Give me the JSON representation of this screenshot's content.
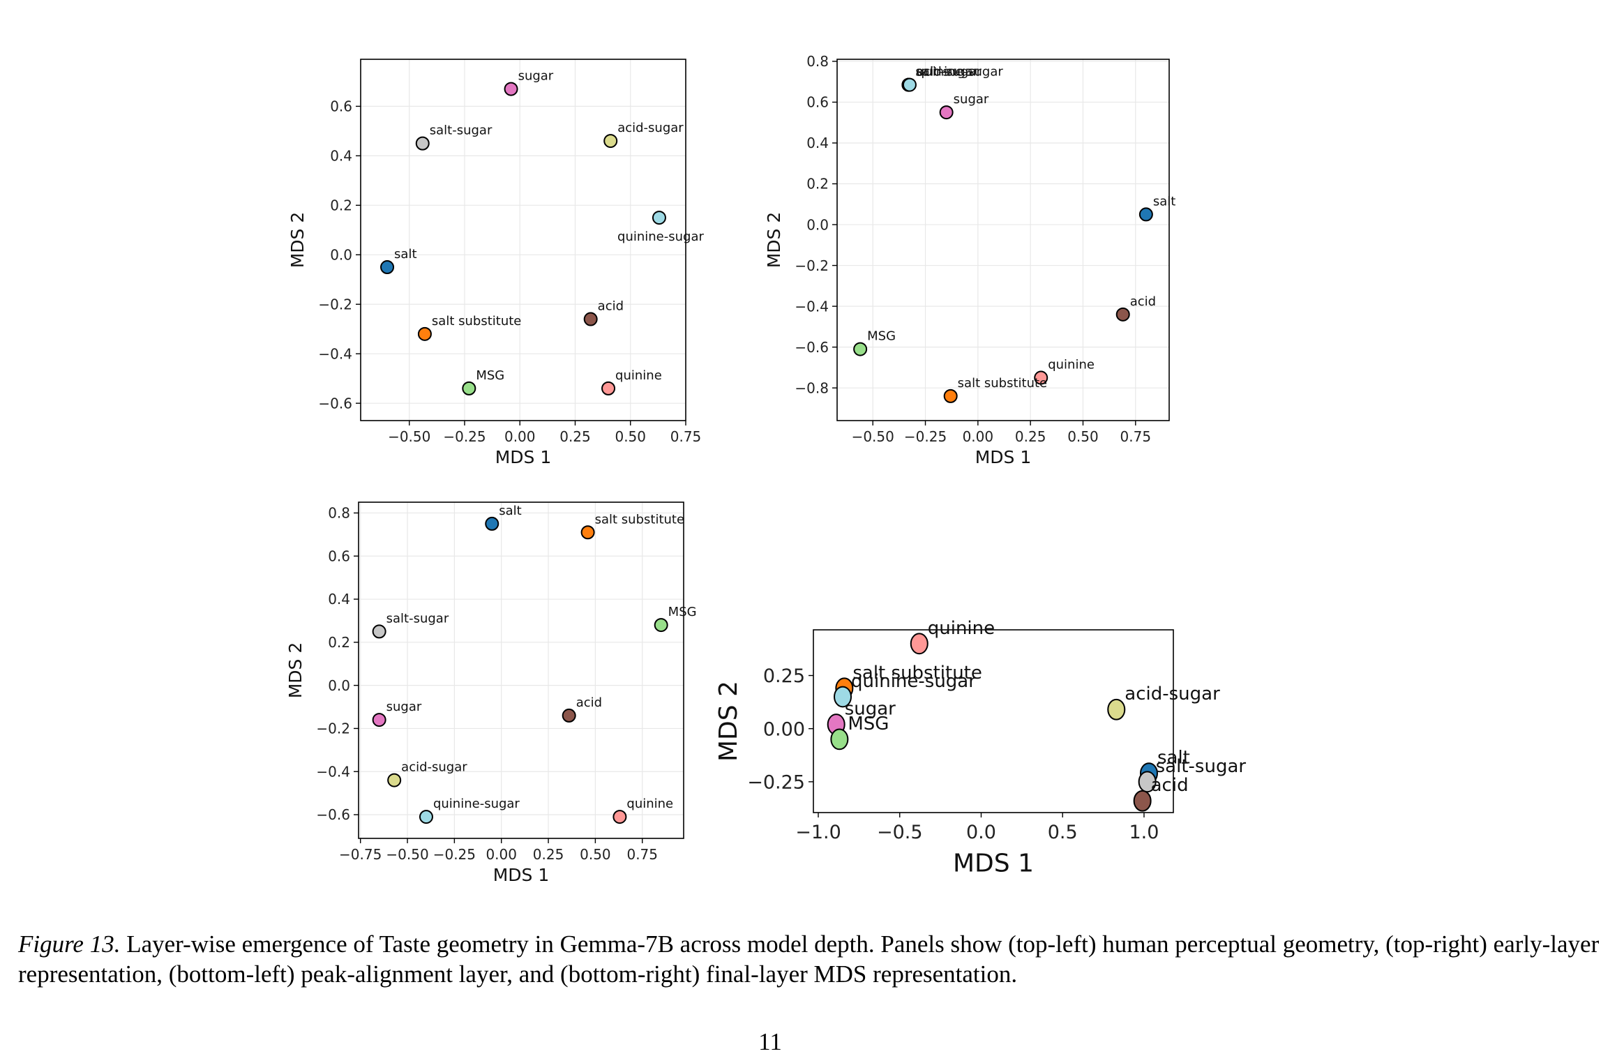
{
  "chart_data": [
    {
      "type": "scatter",
      "panel": "top-left",
      "xlabel": "MDS 1",
      "ylabel": "MDS 2",
      "xlim": [
        -0.72,
        0.75
      ],
      "ylim": [
        -0.67,
        0.79
      ],
      "xticks": [
        -0.5,
        -0.25,
        0.0,
        0.25,
        0.5,
        0.75
      ],
      "yticks": [
        -0.6,
        -0.4,
        -0.2,
        0.0,
        0.2,
        0.4,
        0.6
      ],
      "xtick_labels": [
        "−0.50",
        "−0.25",
        "0.00",
        "0.25",
        "0.50",
        "0.75"
      ],
      "ytick_labels": [
        "−0.6",
        "−0.4",
        "−0.2",
        "0.0",
        "0.2",
        "0.4",
        "0.6"
      ],
      "grid": true,
      "points": [
        {
          "label": "sugar",
          "x": -0.04,
          "y": 0.67,
          "color": "#e377c2",
          "label_pos": "above-right"
        },
        {
          "label": "salt-sugar",
          "x": -0.44,
          "y": 0.45,
          "color": "#c7c7c7",
          "label_pos": "above-right"
        },
        {
          "label": "acid-sugar",
          "x": 0.41,
          "y": 0.46,
          "color": "#dbdb8d",
          "label_pos": "above-right"
        },
        {
          "label": "quinine-sugar",
          "x": 0.63,
          "y": 0.15,
          "color": "#9edae5",
          "label_pos": "below"
        },
        {
          "label": "salt",
          "x": -0.6,
          "y": -0.05,
          "color": "#1f77b4",
          "label_pos": "above-right"
        },
        {
          "label": "salt substitute",
          "x": -0.43,
          "y": -0.32,
          "color": "#ff7f0e",
          "label_pos": "above-right"
        },
        {
          "label": "acid",
          "x": 0.32,
          "y": -0.26,
          "color": "#8c564b",
          "label_pos": "above-right"
        },
        {
          "label": "MSG",
          "x": -0.23,
          "y": -0.54,
          "color": "#98df8a",
          "label_pos": "above-right"
        },
        {
          "label": "quinine",
          "x": 0.4,
          "y": -0.54,
          "color": "#ff9896",
          "label_pos": "above-right"
        }
      ]
    },
    {
      "type": "scatter",
      "panel": "top-right",
      "xlabel": "MDS 1",
      "ylabel": "MDS 2",
      "xlim": [
        -0.67,
        0.91
      ],
      "ylim": [
        -0.96,
        0.81
      ],
      "xticks": [
        -0.5,
        -0.25,
        0.0,
        0.25,
        0.5,
        0.75
      ],
      "yticks": [
        -0.8,
        -0.6,
        -0.4,
        -0.2,
        0.0,
        0.2,
        0.4,
        0.6,
        0.8
      ],
      "xtick_labels": [
        "−0.50",
        "−0.25",
        "0.00",
        "0.25",
        "0.50",
        "0.75"
      ],
      "ytick_labels": [
        "−0.8",
        "−0.6",
        "−0.4",
        "−0.2",
        "0.0",
        "0.2",
        "0.4",
        "0.6",
        "0.8"
      ],
      "grid": true,
      "points": [
        {
          "label": "salt-sugar",
          "x": -0.33,
          "y": 0.685,
          "color": "#c7c7c7",
          "label_pos": "above-right"
        },
        {
          "label": "acid-sugar",
          "x": -0.33,
          "y": 0.685,
          "color": "#dbdb8d",
          "label_pos": "above-right"
        },
        {
          "label": "quinine-sugar",
          "x": -0.325,
          "y": 0.685,
          "color": "#9edae5",
          "label_pos": "above-right"
        },
        {
          "label": "sugar",
          "x": -0.15,
          "y": 0.55,
          "color": "#e377c2",
          "label_pos": "above-right"
        },
        {
          "label": "salt",
          "x": 0.8,
          "y": 0.05,
          "color": "#1f77b4",
          "label_pos": "above-right"
        },
        {
          "label": "acid",
          "x": 0.69,
          "y": -0.44,
          "color": "#8c564b",
          "label_pos": "above-right"
        },
        {
          "label": "MSG",
          "x": -0.56,
          "y": -0.61,
          "color": "#98df8a",
          "label_pos": "above-right"
        },
        {
          "label": "quinine",
          "x": 0.3,
          "y": -0.75,
          "color": "#ff9896",
          "label_pos": "above-right"
        },
        {
          "label": "salt substitute",
          "x": -0.13,
          "y": -0.84,
          "color": "#ff7f0e",
          "label_pos": "above-right"
        }
      ]
    },
    {
      "type": "scatter",
      "panel": "bottom-left",
      "xlabel": "MDS 1",
      "ylabel": "MDS 2",
      "xlim": [
        -0.76,
        0.97
      ],
      "ylim": [
        -0.71,
        0.85
      ],
      "xticks": [
        -0.75,
        -0.5,
        -0.25,
        0.0,
        0.25,
        0.5,
        0.75
      ],
      "yticks": [
        -0.6,
        -0.4,
        -0.2,
        0.0,
        0.2,
        0.4,
        0.6,
        0.8
      ],
      "xtick_labels": [
        "−0.75",
        "−0.50",
        "−0.25",
        "0.00",
        "0.25",
        "0.50",
        "0.75"
      ],
      "ytick_labels": [
        "−0.6",
        "−0.4",
        "−0.2",
        "0.0",
        "0.2",
        "0.4",
        "0.6",
        "0.8"
      ],
      "grid": true,
      "points": [
        {
          "label": "salt",
          "x": -0.05,
          "y": 0.75,
          "color": "#1f77b4",
          "label_pos": "above-right"
        },
        {
          "label": "salt substitute",
          "x": 0.46,
          "y": 0.71,
          "color": "#ff7f0e",
          "label_pos": "above-right"
        },
        {
          "label": "salt-sugar",
          "x": -0.65,
          "y": 0.25,
          "color": "#c7c7c7",
          "label_pos": "above-right"
        },
        {
          "label": "MSG",
          "x": 0.85,
          "y": 0.28,
          "color": "#98df8a",
          "label_pos": "above-right"
        },
        {
          "label": "sugar",
          "x": -0.65,
          "y": -0.16,
          "color": "#e377c2",
          "label_pos": "above-right"
        },
        {
          "label": "acid",
          "x": 0.36,
          "y": -0.14,
          "color": "#8c564b",
          "label_pos": "above-right"
        },
        {
          "label": "acid-sugar",
          "x": -0.57,
          "y": -0.44,
          "color": "#dbdb8d",
          "label_pos": "above-right"
        },
        {
          "label": "quinine-sugar",
          "x": -0.4,
          "y": -0.61,
          "color": "#9edae5",
          "label_pos": "above-right"
        },
        {
          "label": "quinine",
          "x": 0.63,
          "y": -0.61,
          "color": "#ff9896",
          "label_pos": "above-right"
        }
      ]
    },
    {
      "type": "scatter",
      "panel": "bottom-right",
      "xlabel": "MDS 1",
      "ylabel": "MDS 2",
      "xlim": [
        -1.03,
        1.18
      ],
      "ylim": [
        -0.395,
        0.465
      ],
      "xticks": [
        -1.0,
        -0.5,
        0.0,
        0.5,
        1.0
      ],
      "yticks": [
        -0.25,
        0.0,
        0.25
      ],
      "xtick_labels": [
        "−1.0",
        "−0.5",
        "0.0",
        "0.5",
        "1.0"
      ],
      "ytick_labels": [
        "−0.25",
        "0.00",
        "0.25"
      ],
      "grid": false,
      "points": [
        {
          "label": "quinine",
          "x": -0.38,
          "y": 0.4,
          "color": "#ff9896",
          "label_pos": "above-right"
        },
        {
          "label": "salt substitute",
          "x": -0.84,
          "y": 0.19,
          "color": "#ff7f0e",
          "label_pos": "above-right"
        },
        {
          "label": "quinine-sugar",
          "x": -0.85,
          "y": 0.15,
          "color": "#9edae5",
          "label_pos": "above-right"
        },
        {
          "label": "acid-sugar",
          "x": 0.83,
          "y": 0.09,
          "color": "#dbdb8d",
          "label_pos": "above-right"
        },
        {
          "label": "sugar",
          "x": -0.89,
          "y": 0.02,
          "color": "#e377c2",
          "label_pos": "above-right"
        },
        {
          "label": "MSG",
          "x": -0.87,
          "y": -0.05,
          "color": "#98df8a",
          "label_pos": "above-right"
        },
        {
          "label": "salt",
          "x": 1.03,
          "y": -0.21,
          "color": "#1f77b4",
          "label_pos": "above-right"
        },
        {
          "label": "salt-sugar",
          "x": 1.02,
          "y": -0.25,
          "color": "#c7c7c7",
          "label_pos": "above-right"
        },
        {
          "label": "acid",
          "x": 0.99,
          "y": -0.34,
          "color": "#8c564b",
          "label_pos": "above-right"
        }
      ]
    }
  ],
  "caption": {
    "label": "Figure 13.",
    "text": " Layer-wise emergence of Taste geometry in Gemma-7B across model depth. Panels show (top-left) human perceptual geometry, (top-right) early-layer representation, (bottom-left) peak-alignment layer, and (bottom-right) final-layer MDS representation."
  },
  "page_number": "11"
}
